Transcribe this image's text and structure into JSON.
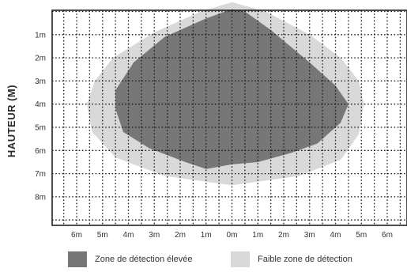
{
  "chart_data": {
    "type": "area",
    "ylabel": "HAUTEUR (M)",
    "x_ticks": [
      "6m",
      "5m",
      "4m",
      "3m",
      "2m",
      "1m",
      "0m",
      "1m",
      "2m",
      "3m",
      "4m",
      "5m",
      "6m"
    ],
    "y_ticks": [
      "1m",
      "2m",
      "3m",
      "4m",
      "5m",
      "6m",
      "7m",
      "8m"
    ],
    "x_range_m": [
      -6.5,
      6.5
    ],
    "y_range_m": [
      -0.6,
      8.7
    ],
    "grid": true,
    "grid_style": "dotted",
    "legend_position": "bottom",
    "series": [
      {
        "name": "Faible zone de détection",
        "color": "#d9d9d9",
        "polygon": [
          [
            0.0,
            -0.4
          ],
          [
            -1.2,
            0.0
          ],
          [
            -3.0,
            0.9
          ],
          [
            -4.6,
            2.0
          ],
          [
            -5.3,
            3.0
          ],
          [
            -5.6,
            4.0
          ],
          [
            -5.4,
            5.2
          ],
          [
            -4.5,
            6.3
          ],
          [
            -2.6,
            7.1
          ],
          [
            0.0,
            7.5
          ],
          [
            2.6,
            7.1
          ],
          [
            4.2,
            6.4
          ],
          [
            4.9,
            5.3
          ],
          [
            5.1,
            4.0
          ],
          [
            4.9,
            3.0
          ],
          [
            4.2,
            2.0
          ],
          [
            3.0,
            1.0
          ],
          [
            1.3,
            0.0
          ]
        ]
      },
      {
        "name": "Zone de détection élevée",
        "color": "#777777",
        "polygon": [
          [
            0.0,
            -0.1
          ],
          [
            -1.0,
            0.3
          ],
          [
            -2.6,
            1.1
          ],
          [
            -3.8,
            2.2
          ],
          [
            -4.5,
            3.4
          ],
          [
            -4.5,
            4.2
          ],
          [
            -4.2,
            5.2
          ],
          [
            -3.2,
            5.9
          ],
          [
            -1.8,
            6.5
          ],
          [
            -1.0,
            6.8
          ],
          [
            0.0,
            6.6
          ],
          [
            1.0,
            6.5
          ],
          [
            2.3,
            6.1
          ],
          [
            3.3,
            5.7
          ],
          [
            4.2,
            4.8
          ],
          [
            4.5,
            4.0
          ],
          [
            4.0,
            3.2
          ],
          [
            3.0,
            2.2
          ],
          [
            1.5,
            0.8
          ],
          [
            0.5,
            0.0
          ]
        ]
      }
    ]
  },
  "legend": {
    "high_label": "Zone de détection élevée",
    "low_label": "Faible zone de détection",
    "high_color": "#777777",
    "low_color": "#d9d9d9"
  }
}
